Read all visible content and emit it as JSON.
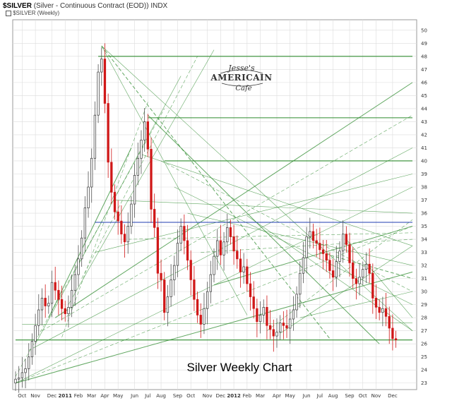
{
  "header": {
    "symbol": "$SILVER",
    "description": "(Silver - Continuous Contract (EOD))",
    "exchange": "INDX",
    "legend": "$SILVER (Weekly)"
  },
  "logo": {
    "line1": "Jesse's",
    "line2": "AMERICAIN",
    "line3": "Cafe"
  },
  "chart_data": {
    "type": "candlestick",
    "title": "$SILVER (Silver - Continuous Contract (EOD)) INDX",
    "subtitle": "$SILVER (Weekly)",
    "annotation": "Silver Weekly Chart",
    "ylim": [
      22.5,
      50.8
    ],
    "y_ticks": [
      23,
      24,
      25,
      26,
      27,
      28,
      29,
      30,
      31,
      32,
      33,
      34,
      35,
      36,
      37,
      38,
      39,
      40,
      41,
      42,
      43,
      44,
      45,
      46,
      47,
      48,
      49,
      50
    ],
    "x_ticks": [
      {
        "label": "Oct",
        "week": 2
      },
      {
        "label": "Nov",
        "week": 6
      },
      {
        "label": "Dec",
        "week": 11
      },
      {
        "label": "2011",
        "week": 15
      },
      {
        "label": "Feb",
        "week": 19
      },
      {
        "label": "Mar",
        "week": 23
      },
      {
        "label": "Apr",
        "week": 27
      },
      {
        "label": "May",
        "week": 31
      },
      {
        "label": "Jun",
        "week": 36
      },
      {
        "label": "Jul",
        "week": 40
      },
      {
        "label": "Aug",
        "week": 44
      },
      {
        "label": "Sep",
        "week": 49
      },
      {
        "label": "Oct",
        "week": 53
      },
      {
        "label": "Nov",
        "week": 58
      },
      {
        "label": "Dec",
        "week": 62
      },
      {
        "label": "2012",
        "week": 66
      },
      {
        "label": "Feb",
        "week": 70
      },
      {
        "label": "Mar",
        "week": 74
      },
      {
        "label": "Apr",
        "week": 79
      },
      {
        "label": "May",
        "week": 83
      },
      {
        "label": "Jun",
        "week": 88
      },
      {
        "label": "Jul",
        "week": 92
      },
      {
        "label": "Aug",
        "week": 96
      },
      {
        "label": "Sep",
        "week": 101
      },
      {
        "label": "Oct",
        "week": 105
      },
      {
        "label": "Nov",
        "week": 109
      },
      {
        "label": "Dec",
        "week": 114
      }
    ],
    "weeks_total": 121,
    "price_axis": "right",
    "grid": true,
    "close_series": [
      23.3,
      23.4,
      23.8,
      24.1,
      25.0,
      26.2,
      27.4,
      28.6,
      29.5,
      28.9,
      29.1,
      30.7,
      30.1,
      29.4,
      28.7,
      28.3,
      28.8,
      30.1,
      31.3,
      32.5,
      34.1,
      36.4,
      38.0,
      40.2,
      43.5,
      46.8,
      47.8,
      44.4,
      39.9,
      37.6,
      36.1,
      35.4,
      34.4,
      33.8,
      35.0,
      36.7,
      38.9,
      40.2,
      41.6,
      43.0,
      40.9,
      36.3,
      34.9,
      31.4,
      30.9,
      28.4,
      29.6,
      30.9,
      32.0,
      33.7,
      35.0,
      33.9,
      32.4,
      30.9,
      29.4,
      28.2,
      27.5,
      28.7,
      30.0,
      31.3,
      32.7,
      33.9,
      32.8,
      33.8,
      34.9,
      34.2,
      33.1,
      32.5,
      31.5,
      31.9,
      30.6,
      29.6,
      28.7,
      27.7,
      28.2,
      28.8,
      27.4,
      27.1,
      26.6,
      26.9,
      27.6,
      27.4,
      27.2,
      27.9,
      28.6,
      29.8,
      31.4,
      32.6,
      34.2,
      34.6,
      33.9,
      33.7,
      33.2,
      32.9,
      32.4,
      31.6,
      31.1,
      32.3,
      33.1,
      34.4,
      33.6,
      32.2,
      31.0,
      30.6,
      31.1,
      31.7,
      32.1,
      31.4,
      29.5,
      28.8,
      28.4,
      28.7,
      28.1,
      27.2,
      26.4,
      26.3
    ],
    "horizontal_lines": [
      {
        "price": 48.0,
        "color": "#2e8b2e"
      },
      {
        "price": 43.3,
        "color": "#2e8b2e"
      },
      {
        "price": 40.0,
        "color": "#2e8b2e"
      },
      {
        "price": 35.3,
        "color": "#1f3bb0"
      },
      {
        "price": 26.3,
        "color": "#2e8b2e"
      }
    ]
  }
}
